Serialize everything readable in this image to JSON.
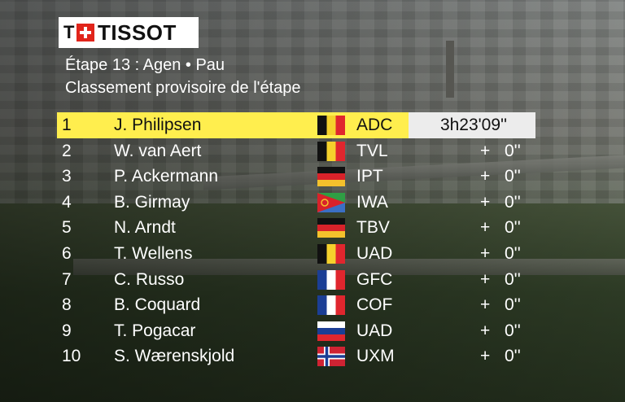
{
  "brand": {
    "logo_text": "TISSOT"
  },
  "header": {
    "title": "Étape 13 : Agen • Pau",
    "subtitle": "Classement provisoire de l'étape"
  },
  "colors": {
    "leader_highlight": "#ffee4e",
    "leader_time_bg": "#ececec",
    "text": "#ffffff",
    "logo_red": "#e1251b"
  },
  "standings": [
    {
      "rank": "1",
      "name": "J. Philipsen",
      "flag": "belgium-flag",
      "team": "ADC",
      "time": "3h23'09''",
      "plus": "",
      "gap": ""
    },
    {
      "rank": "2",
      "name": "W. van Aert",
      "flag": "belgium-flag",
      "team": "TVL",
      "time": "",
      "plus": "+",
      "gap": "0''"
    },
    {
      "rank": "3",
      "name": "P. Ackermann",
      "flag": "germany-flag",
      "team": "IPT",
      "time": "",
      "plus": "+",
      "gap": "0''"
    },
    {
      "rank": "4",
      "name": "B. Girmay",
      "flag": "eritrea-flag",
      "team": "IWA",
      "time": "",
      "plus": "+",
      "gap": "0''"
    },
    {
      "rank": "5",
      "name": "N. Arndt",
      "flag": "germany-flag",
      "team": "TBV",
      "time": "",
      "plus": "+",
      "gap": "0''"
    },
    {
      "rank": "6",
      "name": "T. Wellens",
      "flag": "belgium-flag",
      "team": "UAD",
      "time": "",
      "plus": "+",
      "gap": "0''"
    },
    {
      "rank": "7",
      "name": "C. Russo",
      "flag": "france-flag",
      "team": "GFC",
      "time": "",
      "plus": "+",
      "gap": "0''"
    },
    {
      "rank": "8",
      "name": "B. Coquard",
      "flag": "france-flag",
      "team": "COF",
      "time": "",
      "plus": "+",
      "gap": "0''"
    },
    {
      "rank": "9",
      "name": "T. Pogacar",
      "flag": "slovenia-flag",
      "team": "UAD",
      "time": "",
      "plus": "+",
      "gap": "0''"
    },
    {
      "rank": "10",
      "name": "S. Wærenskjold",
      "flag": "norway-flag",
      "team": "UXM",
      "time": "",
      "plus": "+",
      "gap": "0''"
    }
  ]
}
